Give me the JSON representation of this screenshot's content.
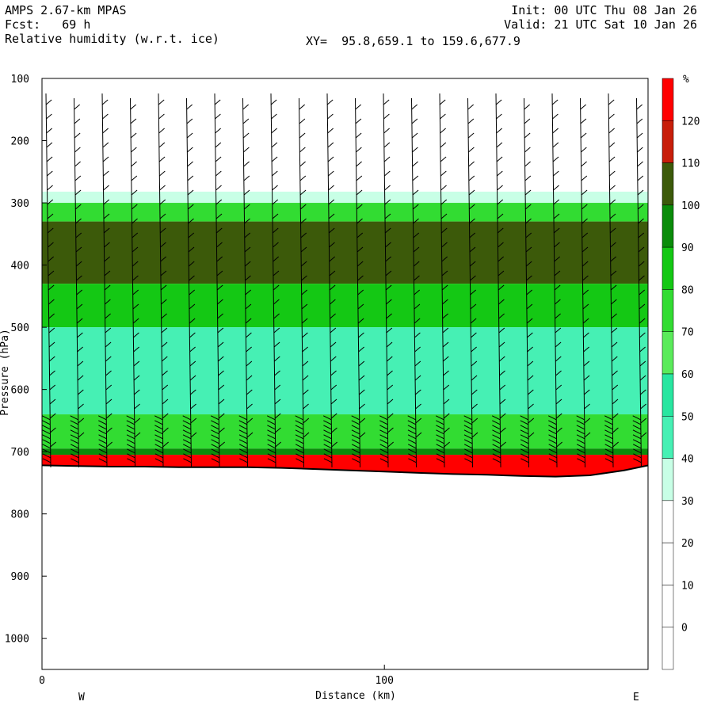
{
  "header": {
    "model": "AMPS 2.67-km MPAS",
    "forecast": "Fcst:   69 h",
    "field": "Relative humidity (w.r.t. ice)",
    "init": "Init: 00 UTC Thu 08 Jan 26",
    "valid": "Valid: 21 UTC Sat 10 Jan 26",
    "xy": "XY=  95.8,659.1 to 159.6,677.9"
  },
  "chart_data": {
    "type": "heatmap",
    "title": "Relative humidity (w.r.t. ice)",
    "xlabel": "Distance (km)",
    "ylabel": "Pressure (hPa)",
    "xlim": [
      0,
      177
    ],
    "ylim": [
      1050,
      100
    ],
    "x_ticks": [
      0,
      100
    ],
    "y_ticks": [
      100,
      200,
      300,
      400,
      500,
      600,
      700,
      800,
      900,
      1000
    ],
    "x_end_labels": [
      "W",
      "E"
    ],
    "colorbar": {
      "unit": "%",
      "levels": [
        0,
        10,
        20,
        30,
        40,
        50,
        60,
        70,
        80,
        90,
        100,
        110,
        120
      ],
      "colors": [
        "#ffffff",
        "#ffffff",
        "#ffffff",
        "#ffffff",
        "#c8ffe6",
        "#46f0b4",
        "#28e6a0",
        "#5aeb5a",
        "#32dc32",
        "#14c814",
        "#0a8c0a",
        "#3c5a0a",
        "#c81e0a",
        "#ff0000"
      ]
    },
    "layers": [
      {
        "p_top": 282,
        "p_bot": 300,
        "rh": 30
      },
      {
        "p_top": 300,
        "p_bot": 330,
        "rh": 70
      },
      {
        "p_top": 330,
        "p_bot": 430,
        "rh": 100
      },
      {
        "p_top": 430,
        "p_bot": 500,
        "rh": 80
      },
      {
        "p_top": 500,
        "p_bot": 640,
        "rh": 40
      },
      {
        "p_top": 640,
        "p_bot": 695,
        "rh": 70
      },
      {
        "p_top": 695,
        "p_bot": 705,
        "rh": 90
      },
      {
        "p_top": 705,
        "p_bot": 740,
        "rh": 120
      }
    ],
    "terrain_pressure": [
      [
        0,
        722
      ],
      [
        10,
        723
      ],
      [
        20,
        724
      ],
      [
        30,
        724
      ],
      [
        40,
        725
      ],
      [
        50,
        725
      ],
      [
        60,
        725
      ],
      [
        70,
        726
      ],
      [
        80,
        728
      ],
      [
        90,
        730
      ],
      [
        100,
        732
      ],
      [
        110,
        734
      ],
      [
        120,
        736
      ],
      [
        130,
        737
      ],
      [
        140,
        739
      ],
      [
        150,
        740
      ],
      [
        160,
        738
      ],
      [
        170,
        730
      ],
      [
        177,
        722
      ]
    ]
  }
}
